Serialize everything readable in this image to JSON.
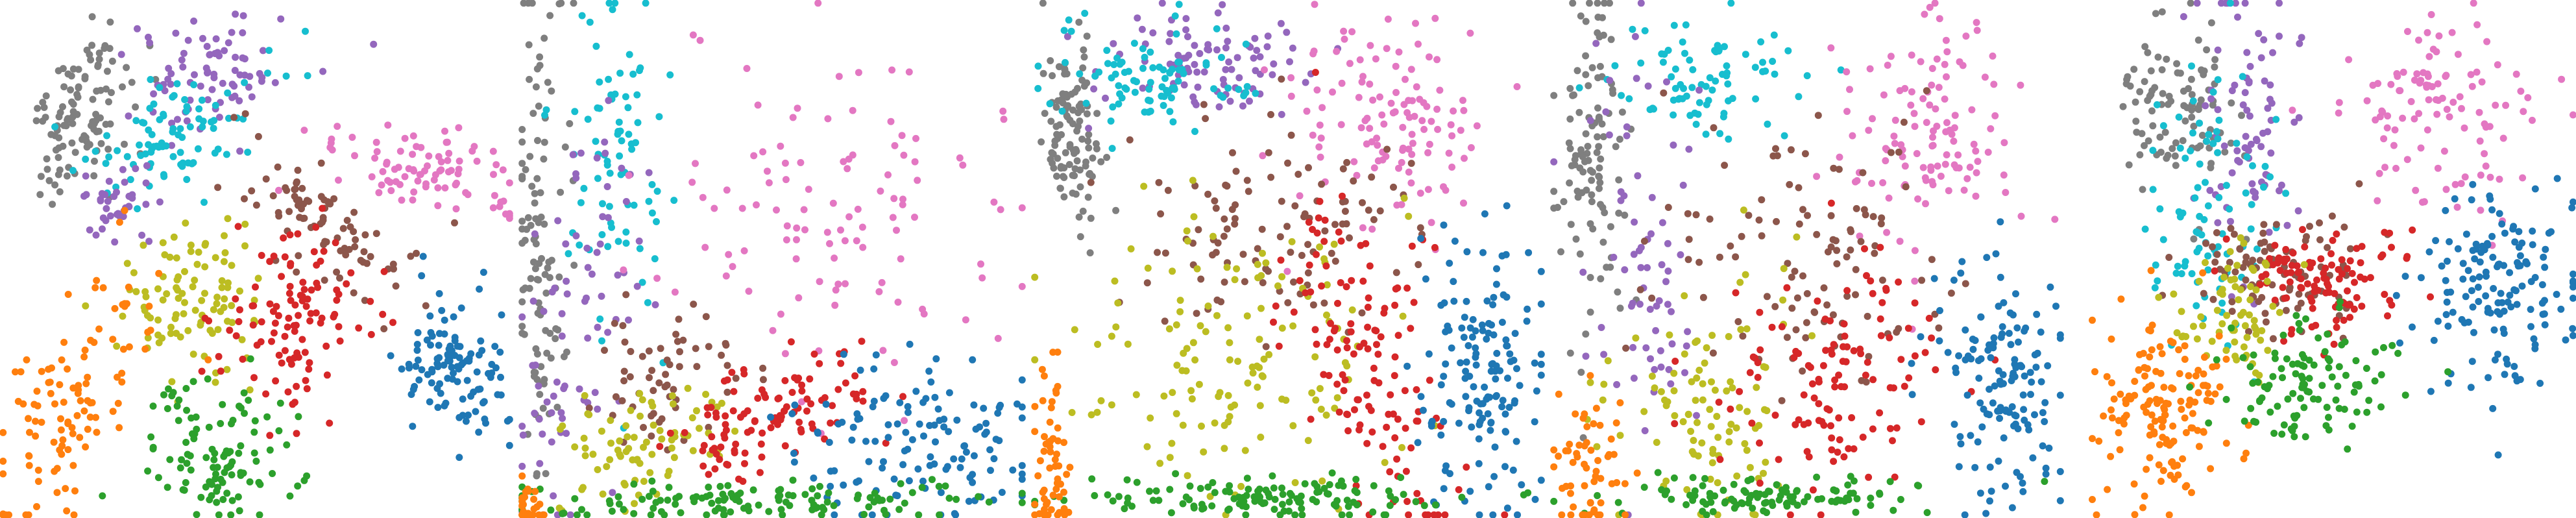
{
  "figure": {
    "description_visible_text": ""
  },
  "palette": {
    "blue": "#1f77b4",
    "orange": "#ff7f0e",
    "green": "#2ca02c",
    "red": "#d62728",
    "purple": "#9467bd",
    "brown": "#8c564b",
    "pink": "#e377c2",
    "gray": "#7f7f7f",
    "olive": "#bcbd22",
    "cyan": "#17becf"
  },
  "chart_data": [
    {
      "type": "scatter",
      "title": "",
      "xlabel": "",
      "ylabel": "",
      "axes_visible": false,
      "grid": false,
      "legend": "none",
      "xlim": [
        0,
        100
      ],
      "ylim": [
        0,
        100
      ],
      "clusters": [
        {
          "color": "gray",
          "n": 110,
          "cx": 16,
          "cy": 78,
          "sx": 5,
          "sy": 9,
          "rot": -20
        },
        {
          "color": "purple",
          "n": 80,
          "cx": 40,
          "cy": 86,
          "sx": 8,
          "sy": 6,
          "rot": 20
        },
        {
          "color": "cyan",
          "n": 90,
          "cx": 34,
          "cy": 73,
          "sx": 9,
          "sy": 5,
          "rot": 35
        },
        {
          "color": "purple",
          "n": 40,
          "cx": 24,
          "cy": 61,
          "sx": 4,
          "sy": 4,
          "rot": 0
        },
        {
          "color": "pink",
          "n": 90,
          "cx": 82,
          "cy": 67,
          "sx": 11,
          "sy": 4,
          "rot": -12
        },
        {
          "color": "brown",
          "n": 85,
          "cx": 62,
          "cy": 57,
          "sx": 10,
          "sy": 5,
          "rot": -30
        },
        {
          "color": "olive",
          "n": 100,
          "cx": 37,
          "cy": 41,
          "sx": 7,
          "sy": 7,
          "rot": 0
        },
        {
          "color": "red",
          "n": 110,
          "cx": 58,
          "cy": 38,
          "sx": 7,
          "sy": 9,
          "rot": -20
        },
        {
          "color": "blue",
          "n": 110,
          "cx": 88,
          "cy": 30,
          "sx": 6,
          "sy": 7,
          "rot": 0
        },
        {
          "color": "orange",
          "n": 110,
          "cx": 14,
          "cy": 22,
          "sx": 6,
          "sy": 14,
          "rot": -30
        },
        {
          "color": "green",
          "n": 110,
          "cx": 43,
          "cy": 12,
          "sx": 7,
          "sy": 7,
          "rot": 0
        }
      ]
    },
    {
      "type": "scatter",
      "title": "",
      "xlabel": "",
      "ylabel": "",
      "axes_visible": false,
      "grid": false,
      "legend": "none",
      "xlim": [
        0,
        100
      ],
      "ylim": [
        0,
        100
      ],
      "clusters": [
        {
          "color": "gray",
          "n": 110,
          "cx": 4,
          "cy": 55,
          "sx": 3,
          "sy": 28,
          "rot": 0
        },
        {
          "color": "cyan",
          "n": 80,
          "cx": 20,
          "cy": 68,
          "sx": 6,
          "sy": 18,
          "rot": 0
        },
        {
          "color": "purple",
          "n": 80,
          "cx": 12,
          "cy": 35,
          "sx": 5,
          "sy": 24,
          "rot": -10
        },
        {
          "color": "pink",
          "n": 110,
          "cx": 62,
          "cy": 58,
          "sx": 18,
          "sy": 16,
          "rot": 0
        },
        {
          "color": "brown",
          "n": 60,
          "cx": 30,
          "cy": 28,
          "sx": 7,
          "sy": 6,
          "rot": 20
        },
        {
          "color": "olive",
          "n": 80,
          "cx": 24,
          "cy": 14,
          "sx": 9,
          "sy": 5,
          "rot": 25
        },
        {
          "color": "red",
          "n": 110,
          "cx": 48,
          "cy": 20,
          "sx": 10,
          "sy": 5,
          "rot": 20
        },
        {
          "color": "blue",
          "n": 130,
          "cx": 80,
          "cy": 14,
          "sx": 13,
          "sy": 8,
          "rot": 0
        },
        {
          "color": "green",
          "n": 130,
          "cx": 45,
          "cy": 3,
          "sx": 28,
          "sy": 2,
          "rot": 0
        },
        {
          "color": "orange",
          "n": 30,
          "cx": 2,
          "cy": 2,
          "sx": 1.5,
          "sy": 3,
          "rot": 0
        }
      ]
    },
    {
      "type": "scatter",
      "title": "",
      "xlabel": "",
      "ylabel": "",
      "axes_visible": false,
      "grid": false,
      "legend": "none",
      "xlim": [
        0,
        100
      ],
      "ylim": [
        0,
        100
      ],
      "clusters": [
        {
          "color": "gray",
          "n": 110,
          "cx": 8,
          "cy": 75,
          "sx": 3,
          "sy": 9,
          "rot": 0
        },
        {
          "color": "purple",
          "n": 90,
          "cx": 32,
          "cy": 88,
          "sx": 12,
          "sy": 5,
          "rot": 0
        },
        {
          "color": "cyan",
          "n": 90,
          "cx": 22,
          "cy": 84,
          "sx": 10,
          "sy": 5,
          "rot": 0
        },
        {
          "color": "pink",
          "n": 120,
          "cx": 70,
          "cy": 78,
          "sx": 10,
          "sy": 10,
          "rot": 0
        },
        {
          "color": "brown",
          "n": 110,
          "cx": 48,
          "cy": 56,
          "sx": 15,
          "sy": 10,
          "rot": 0
        },
        {
          "color": "olive",
          "n": 140,
          "cx": 40,
          "cy": 30,
          "sx": 15,
          "sy": 13,
          "rot": 0
        },
        {
          "color": "red",
          "n": 130,
          "cx": 66,
          "cy": 30,
          "sx": 6,
          "sy": 20,
          "rot": 15
        },
        {
          "color": "blue",
          "n": 150,
          "cx": 88,
          "cy": 28,
          "sx": 6,
          "sy": 13,
          "rot": 0
        },
        {
          "color": "green",
          "n": 130,
          "cx": 45,
          "cy": 4,
          "sx": 20,
          "sy": 2,
          "rot": 0
        },
        {
          "color": "orange",
          "n": 60,
          "cx": 4,
          "cy": 10,
          "sx": 2,
          "sy": 10,
          "rot": 0
        }
      ]
    },
    {
      "type": "scatter",
      "title": "",
      "xlabel": "",
      "ylabel": "",
      "axes_visible": false,
      "grid": false,
      "legend": "none",
      "xlim": [
        0,
        100
      ],
      "ylim": [
        0,
        100
      ],
      "clusters": [
        {
          "color": "gray",
          "n": 110,
          "cx": 8,
          "cy": 68,
          "sx": 3,
          "sy": 17,
          "rot": 0
        },
        {
          "color": "cyan",
          "n": 80,
          "cx": 30,
          "cy": 85,
          "sx": 10,
          "sy": 6,
          "rot": 0
        },
        {
          "color": "purple",
          "n": 70,
          "cx": 18,
          "cy": 45,
          "sx": 5,
          "sy": 22,
          "rot": 0
        },
        {
          "color": "pink",
          "n": 120,
          "cx": 72,
          "cy": 75,
          "sx": 9,
          "sy": 11,
          "rot": 0
        },
        {
          "color": "brown",
          "n": 110,
          "cx": 48,
          "cy": 50,
          "sx": 14,
          "sy": 13,
          "rot": 0
        },
        {
          "color": "olive",
          "n": 100,
          "cx": 30,
          "cy": 20,
          "sx": 9,
          "sy": 12,
          "rot": 0
        },
        {
          "color": "red",
          "n": 120,
          "cx": 55,
          "cy": 28,
          "sx": 12,
          "sy": 10,
          "rot": 25
        },
        {
          "color": "blue",
          "n": 140,
          "cx": 88,
          "cy": 27,
          "sx": 6,
          "sy": 13,
          "rot": 0
        },
        {
          "color": "green",
          "n": 110,
          "cx": 45,
          "cy": 4,
          "sx": 16,
          "sy": 2,
          "rot": 0
        },
        {
          "color": "orange",
          "n": 60,
          "cx": 7,
          "cy": 10,
          "sx": 3,
          "sy": 8,
          "rot": 0
        }
      ]
    },
    {
      "type": "scatter",
      "title": "",
      "xlabel": "",
      "ylabel": "",
      "axes_visible": false,
      "grid": false,
      "legend": "none",
      "xlim": [
        0,
        100
      ],
      "ylim": [
        0,
        100
      ],
      "clusters": [
        {
          "color": "gray",
          "n": 100,
          "cx": 18,
          "cy": 78,
          "sx": 6,
          "sy": 9,
          "rot": 0
        },
        {
          "color": "purple",
          "n": 80,
          "cx": 33,
          "cy": 74,
          "sx": 6,
          "sy": 14,
          "rot": 0
        },
        {
          "color": "cyan",
          "n": 90,
          "cx": 25,
          "cy": 60,
          "sx": 6,
          "sy": 13,
          "rot": 0
        },
        {
          "color": "pink",
          "n": 110,
          "cx": 70,
          "cy": 80,
          "sx": 10,
          "sy": 9,
          "rot": -25
        },
        {
          "color": "brown",
          "n": 100,
          "cx": 40,
          "cy": 48,
          "sx": 10,
          "sy": 6,
          "rot": 0
        },
        {
          "color": "red",
          "n": 110,
          "cx": 48,
          "cy": 45,
          "sx": 8,
          "sy": 6,
          "rot": 0
        },
        {
          "color": "olive",
          "n": 70,
          "cx": 30,
          "cy": 40,
          "sx": 5,
          "sy": 6,
          "rot": 0
        },
        {
          "color": "blue",
          "n": 150,
          "cx": 84,
          "cy": 43,
          "sx": 9,
          "sy": 10,
          "rot": 0
        },
        {
          "color": "orange",
          "n": 150,
          "cx": 15,
          "cy": 21,
          "sx": 7,
          "sy": 10,
          "rot": 0
        },
        {
          "color": "green",
          "n": 110,
          "cx": 45,
          "cy": 27,
          "sx": 10,
          "sy": 6,
          "rot": 0
        }
      ]
    }
  ]
}
